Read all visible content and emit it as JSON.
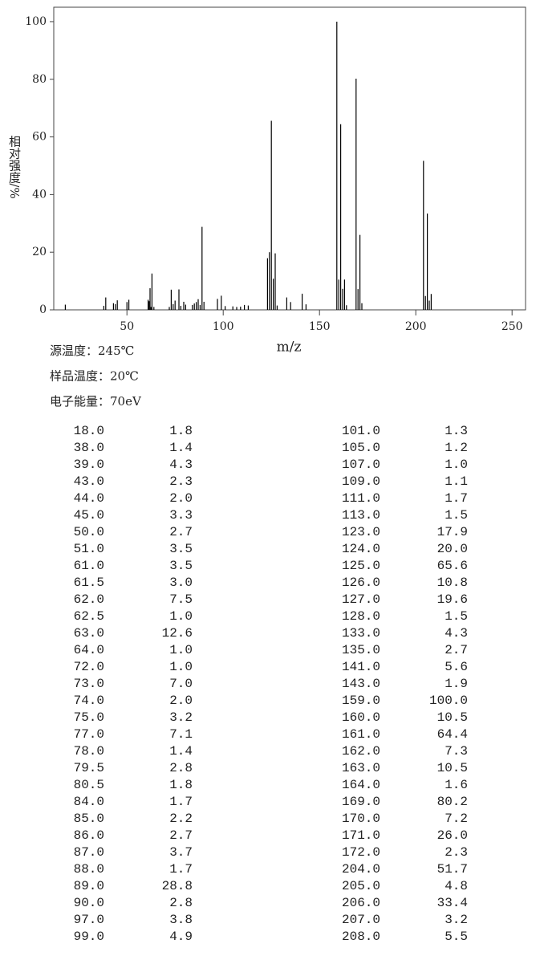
{
  "chart_data": {
    "type": "stick",
    "xlabel": "m/z",
    "ylabel": "相对强度/%",
    "color": "#000000",
    "xlim": [
      12,
      257
    ],
    "ylim": [
      0,
      105
    ],
    "xticks": [
      50,
      100,
      150,
      200,
      250
    ],
    "yticks": [
      0,
      20,
      40,
      60,
      80,
      100
    ],
    "x": [
      18,
      38,
      39,
      43,
      44,
      45,
      50,
      51,
      61,
      61.5,
      62,
      62.5,
      63,
      64,
      72,
      73,
      74,
      75,
      77,
      78,
      79.5,
      80.5,
      84,
      85,
      86,
      87,
      88,
      89,
      90,
      97,
      99,
      101,
      105,
      107,
      109,
      111,
      113,
      123,
      124,
      125,
      126,
      127,
      128,
      133,
      135,
      141,
      143,
      159,
      160,
      161,
      162,
      163,
      164,
      169,
      170,
      171,
      172,
      204,
      205,
      206,
      207,
      208
    ],
    "x_labels": [
      "18.0",
      "38.0",
      "39.0",
      "43.0",
      "44.0",
      "45.0",
      "50.0",
      "51.0",
      "61.0",
      "61.5",
      "62.0",
      "62.5",
      "63.0",
      "64.0",
      "72.0",
      "73.0",
      "74.0",
      "75.0",
      "77.0",
      "78.0",
      "79.5",
      "80.5",
      "84.0",
      "85.0",
      "86.0",
      "87.0",
      "88.0",
      "89.0",
      "90.0",
      "97.0",
      "99.0",
      "101.0",
      "105.0",
      "107.0",
      "109.0",
      "111.0",
      "113.0",
      "123.0",
      "124.0",
      "125.0",
      "126.0",
      "127.0",
      "128.0",
      "133.0",
      "135.0",
      "141.0",
      "143.0",
      "159.0",
      "160.0",
      "161.0",
      "162.0",
      "163.0",
      "164.0",
      "169.0",
      "170.0",
      "171.0",
      "172.0",
      "204.0",
      "205.0",
      "206.0",
      "207.0",
      "208.0"
    ],
    "values": [
      1.8,
      1.4,
      4.3,
      2.3,
      2.0,
      3.3,
      2.7,
      3.5,
      3.5,
      3.0,
      7.5,
      1.0,
      12.6,
      1.0,
      1.0,
      7.0,
      2.0,
      3.2,
      7.1,
      1.4,
      2.8,
      1.8,
      1.7,
      2.2,
      2.7,
      3.7,
      1.7,
      28.8,
      2.8,
      3.8,
      4.9,
      1.3,
      1.2,
      1.0,
      1.1,
      1.7,
      1.5,
      17.9,
      20.0,
      65.6,
      10.8,
      19.6,
      1.5,
      4.3,
      2.7,
      5.6,
      1.9,
      100.0,
      10.5,
      64.4,
      7.3,
      10.5,
      1.6,
      80.2,
      7.2,
      26.0,
      2.3,
      51.7,
      4.8,
      33.4,
      3.2,
      5.5
    ],
    "value_labels": [
      "1.8",
      "1.4",
      "4.3",
      "2.3",
      "2.0",
      "3.3",
      "2.7",
      "3.5",
      "3.5",
      "3.0",
      "7.5",
      "1.0",
      "12.6",
      "1.0",
      "1.0",
      "7.0",
      "2.0",
      "3.2",
      "7.1",
      "1.4",
      "2.8",
      "1.8",
      "1.7",
      "2.2",
      "2.7",
      "3.7",
      "1.7",
      "28.8",
      "2.8",
      "3.8",
      "4.9",
      "1.3",
      "1.2",
      "1.0",
      "1.1",
      "1.7",
      "1.5",
      "17.9",
      "20.0",
      "65.6",
      "10.8",
      "19.6",
      "1.5",
      "4.3",
      "2.7",
      "5.6",
      "1.9",
      "100.0",
      "10.5",
      "64.4",
      "7.3",
      "10.5",
      "1.6",
      "80.2",
      "7.2",
      "26.0",
      "2.3",
      "51.7",
      "4.8",
      "33.4",
      "3.2",
      "5.5"
    ]
  },
  "conditions": [
    "源温度：245℃",
    "样品温度：20℃",
    "电子能量：70eV"
  ]
}
